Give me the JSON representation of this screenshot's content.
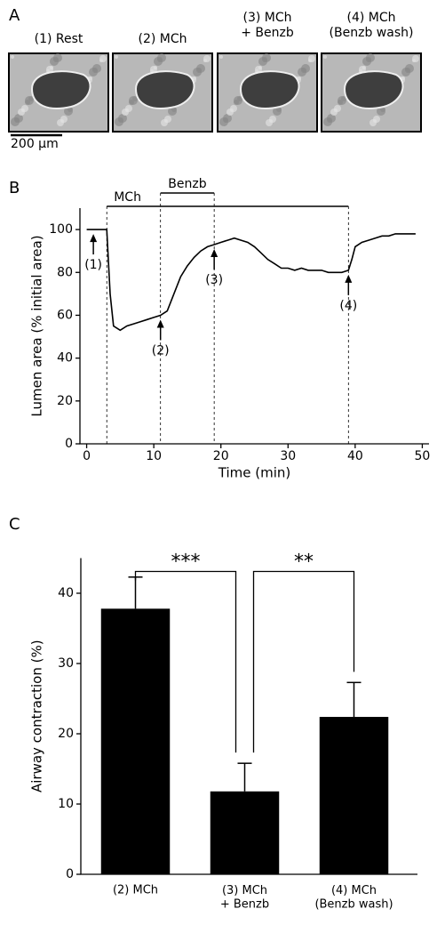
{
  "panel_a": {
    "label": "A",
    "images": [
      "(1) Rest",
      "(2) MCh",
      "(3) MCh\n+ Benzb",
      "(4) MCh\n(Benzb wash)"
    ],
    "scale_bar": "200 µm"
  },
  "chart_data": [
    {
      "type": "line",
      "panel_label": "B",
      "x_label": "Time (min)",
      "y_label": "Lumen area (% initial area)",
      "x": [
        0,
        1,
        2,
        3,
        3.5,
        4,
        5,
        6,
        7,
        8,
        9,
        10,
        11,
        12,
        13,
        14,
        15,
        16,
        17,
        18,
        19,
        20,
        21,
        22,
        23,
        24,
        25,
        26,
        27,
        28,
        29,
        30,
        31,
        32,
        33,
        34,
        35,
        36,
        37,
        38,
        39,
        39.5,
        40,
        41,
        42,
        43,
        44,
        45,
        46,
        47,
        48,
        49
      ],
      "values": [
        100,
        100,
        100,
        100,
        70,
        55,
        53,
        55,
        56,
        57,
        58,
        59,
        60,
        62,
        70,
        78,
        83,
        87,
        90,
        92,
        93,
        94,
        95,
        96,
        95,
        94,
        92,
        89,
        86,
        84,
        82,
        82,
        81,
        82,
        81,
        81,
        81,
        80,
        80,
        80,
        81,
        86,
        92,
        94,
        95,
        96,
        97,
        97,
        98,
        98,
        98,
        98
      ],
      "color": "#000000",
      "xlim": [
        -1,
        51
      ],
      "xticks": [
        0,
        10,
        20,
        30,
        40,
        50
      ],
      "ylim": [
        0,
        110
      ],
      "yticks": [
        0,
        20,
        40,
        60,
        80,
        100
      ],
      "periods": [
        {
          "label": "MCh",
          "start": 3,
          "end": 39
        },
        {
          "label": "Benzb",
          "start": 11,
          "end": 19
        }
      ],
      "events": [
        {
          "label": "(1)",
          "x": 1
        },
        {
          "label": "(2)",
          "x": 11
        },
        {
          "label": "(3)",
          "x": 19
        },
        {
          "label": "(4)",
          "x": 39
        }
      ]
    },
    {
      "type": "bar",
      "panel_label": "C",
      "y_label": "Airway contraction (%)",
      "categories": [
        "(2) MCh",
        "(3) MCh\n+ Benzb",
        "(4) MCh\n(Benzb wash)"
      ],
      "values": [
        37.8,
        11.8,
        22.4
      ],
      "errors": [
        4.5,
        4,
        4.9
      ],
      "color": "#000000",
      "ylim": [
        0,
        45
      ],
      "yticks": [
        0,
        10,
        20,
        30,
        40
      ],
      "significance": [
        {
          "label": "***",
          "from": 0,
          "to": 1
        },
        {
          "label": "**",
          "from": 1,
          "to": 2
        }
      ]
    }
  ]
}
